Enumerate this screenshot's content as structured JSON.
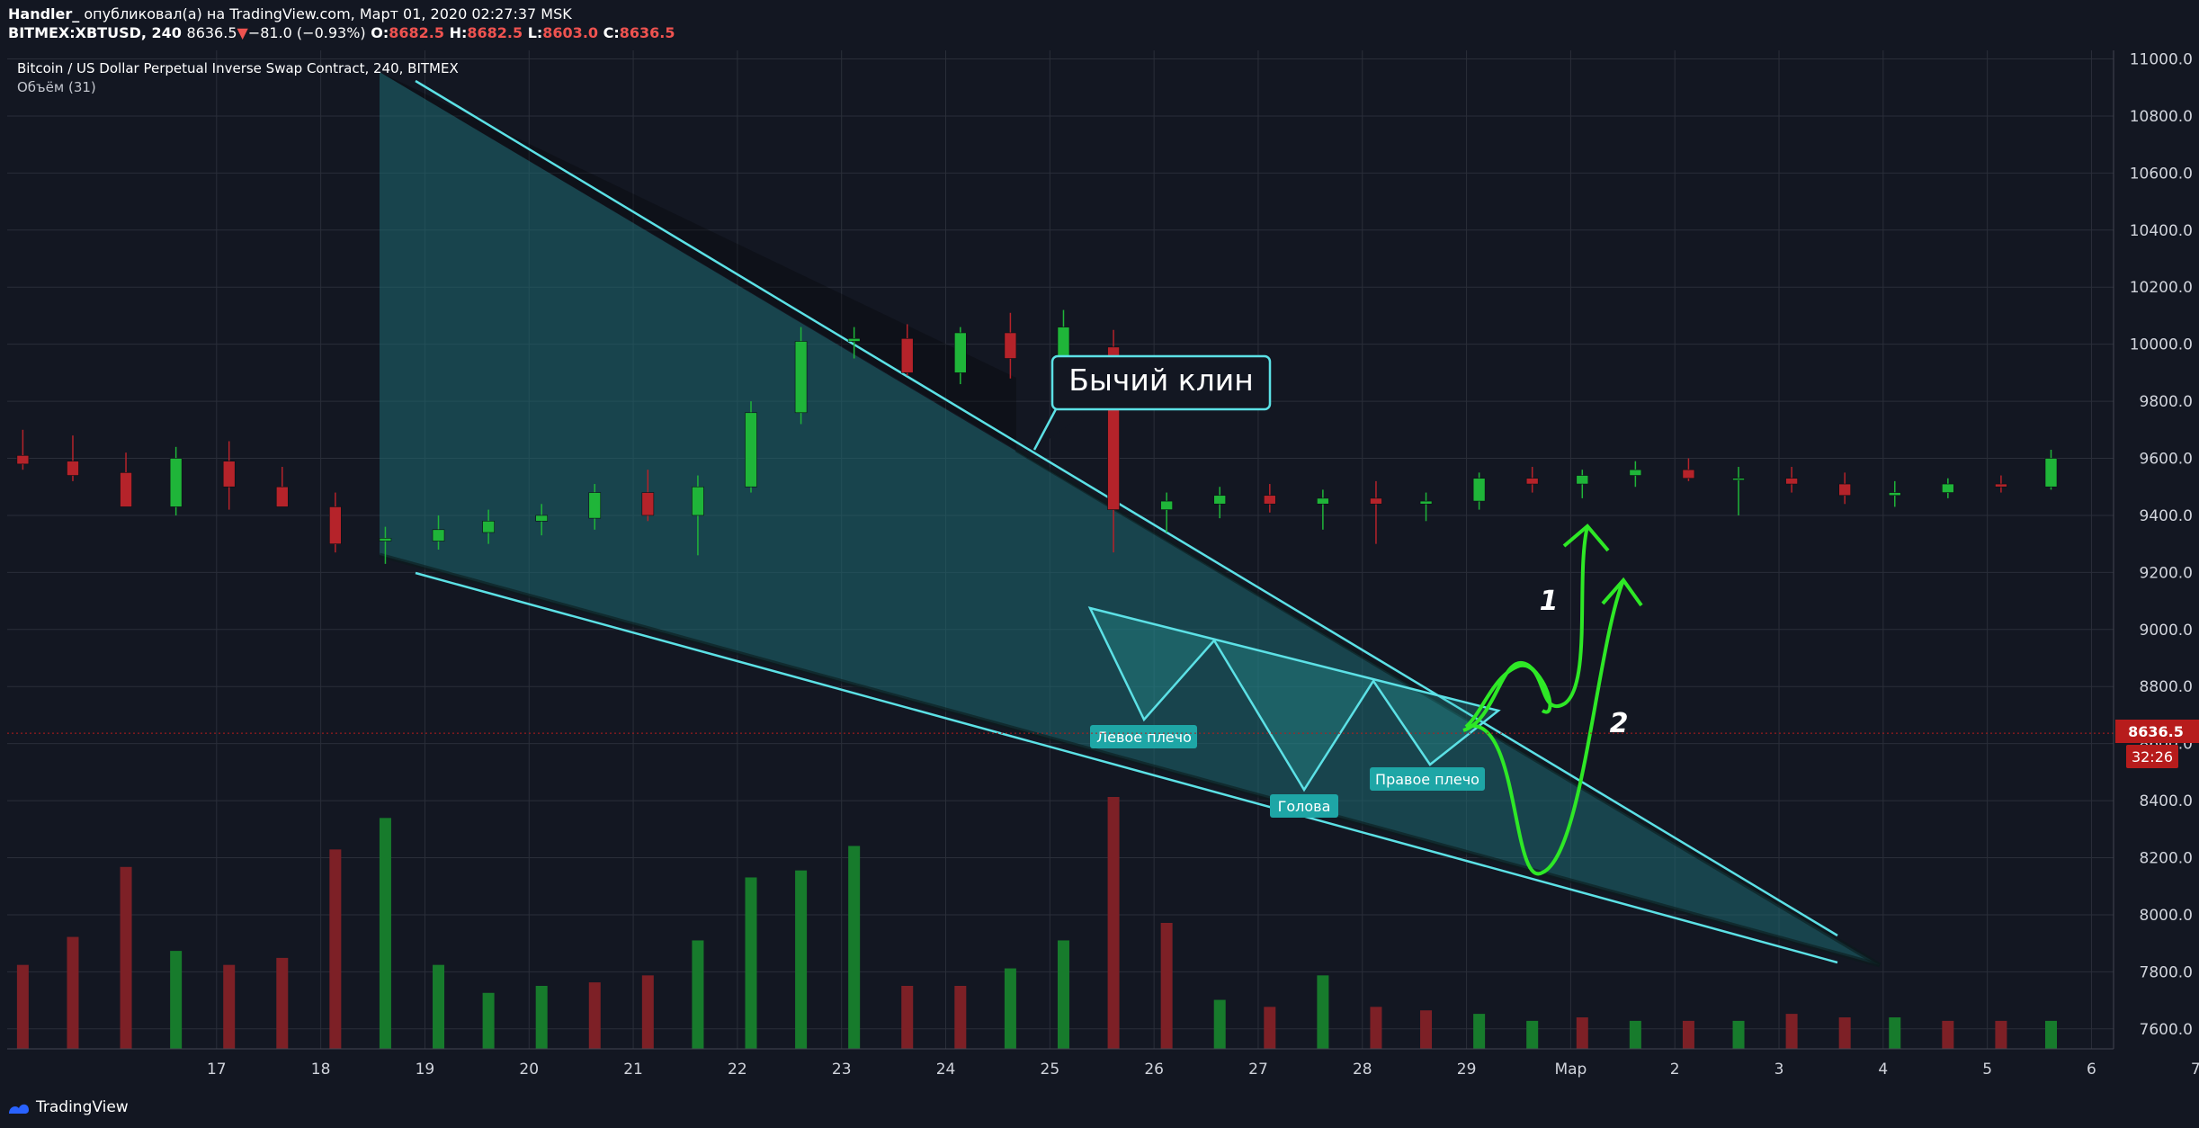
{
  "header": {
    "author": "Handler_",
    "published_text": "опубликовал(а) на TradingView.com, Март 01, 2020 02:27:37 MSK",
    "symbol": "BITMEX:XBTUSD, 240",
    "last": "8636.5",
    "change": "−81.0 (−0.93%)",
    "o_label": "O:",
    "o_value": "8682.5",
    "h_label": "H:",
    "h_value": "8682.5",
    "l_label": "L:",
    "l_value": "8603.0",
    "c_label": "C:",
    "c_value": "8636.5"
  },
  "chart_data": {
    "type": "candlestick",
    "title": "Bitcoin / US Dollar Perpetual Inverse Swap Contract, 240, BITMEX",
    "volume_label": "Объём (31)",
    "x_tick_labels": [
      "17",
      "18",
      "19",
      "20",
      "21",
      "22",
      "23",
      "24",
      "25",
      "26",
      "27",
      "28",
      "29",
      "Мар",
      "2",
      "3",
      "4",
      "5",
      "6",
      "7"
    ],
    "y_tick_labels": [
      "11000.0",
      "10800.0",
      "10600.0",
      "10400.0",
      "10200.0",
      "10000.0",
      "9800.0",
      "9600.0",
      "9400.0",
      "9200.0",
      "9000.0",
      "8800.0",
      "8600.0",
      "8400.0",
      "8200.0",
      "8000.0",
      "7800.0",
      "7600.0"
    ],
    "y_ticks": [
      11000,
      10800,
      10600,
      10400,
      10200,
      10000,
      9800,
      9600,
      9400,
      9200,
      9000,
      8800,
      8600,
      8400,
      8200,
      8000,
      7800,
      7600
    ],
    "ylim": [
      7530,
      11030
    ],
    "xlim": [
      16.33,
      23.07
    ],
    "last_price": 8636.5,
    "last_price_label": "8636.5",
    "countdown": "32:26",
    "grid": true,
    "colors": {
      "background": "#131722",
      "up": "#26a69a",
      "up_body": "#1fb539",
      "down_body": "#b5232a",
      "vol_up": "#177b2c",
      "vol_down": "#7d2026",
      "wedge_line": "#5ce1e6",
      "wedge_fill": "#1d6a71",
      "arrow": "#2ee826",
      "last_price_bg": "#b71c1c"
    },
    "candles": [
      {
        "t": 16.38,
        "o": 9610,
        "h": 9700,
        "l": 9560,
        "c": 9580
      },
      {
        "t": 16.54,
        "o": 9590,
        "h": 9680,
        "l": 9520,
        "c": 9540
      },
      {
        "t": 16.71,
        "o": 9550,
        "h": 9620,
        "l": 9460,
        "c": 9430
      },
      {
        "t": 16.87,
        "o": 9430,
        "h": 9640,
        "l": 9400,
        "c": 9600
      },
      {
        "t": 17.04,
        "o": 9590,
        "h": 9660,
        "l": 9420,
        "c": 9500
      },
      {
        "t": 17.21,
        "o": 9500,
        "h": 9570,
        "l": 9440,
        "c": 9430
      },
      {
        "t": 17.38,
        "o": 9430,
        "h": 9480,
        "l": 9270,
        "c": 9300
      },
      {
        "t": 17.54,
        "o": 9310,
        "h": 9360,
        "l": 9230,
        "c": 9320
      },
      {
        "t": 17.71,
        "o": 9310,
        "h": 9400,
        "l": 9280,
        "c": 9350
      },
      {
        "t": 17.87,
        "o": 9340,
        "h": 9420,
        "l": 9300,
        "c": 9380
      },
      {
        "t": 18.04,
        "o": 9380,
        "h": 9440,
        "l": 9330,
        "c": 9400
      },
      {
        "t": 18.21,
        "o": 9390,
        "h": 9510,
        "l": 9350,
        "c": 9480
      },
      {
        "t": 18.38,
        "o": 9480,
        "h": 9560,
        "l": 9380,
        "c": 9400
      },
      {
        "t": 18.54,
        "o": 9400,
        "h": 9540,
        "l": 9260,
        "c": 9500
      },
      {
        "t": 18.71,
        "o": 9500,
        "h": 9800,
        "l": 9480,
        "c": 9760
      },
      {
        "t": 18.87,
        "o": 9760,
        "h": 10060,
        "l": 9720,
        "c": 10010
      },
      {
        "t": 19.04,
        "o": 10010,
        "h": 10060,
        "l": 9950,
        "c": 10020
      },
      {
        "t": 19.21,
        "o": 10020,
        "h": 10070,
        "l": 9890,
        "c": 9900
      },
      {
        "t": 19.38,
        "o": 9900,
        "h": 10060,
        "l": 9860,
        "c": 10040
      },
      {
        "t": 19.54,
        "o": 10040,
        "h": 10110,
        "l": 9880,
        "c": 9950
      },
      {
        "t": 19.71,
        "o": 9950,
        "h": 10120,
        "l": 9850,
        "c": 10060
      },
      {
        "t": 19.87,
        "o": 9990,
        "h": 10050,
        "l": 9270,
        "c": 9420
      },
      {
        "t": 20.04,
        "o": 9420,
        "h": 9480,
        "l": 9340,
        "c": 9450
      },
      {
        "t": 20.21,
        "o": 9440,
        "h": 9500,
        "l": 9390,
        "c": 9470
      },
      {
        "t": 20.37,
        "o": 9470,
        "h": 9510,
        "l": 9410,
        "c": 9440
      },
      {
        "t": 20.54,
        "o": 9440,
        "h": 9490,
        "l": 9350,
        "c": 9460
      },
      {
        "t": 20.71,
        "o": 9460,
        "h": 9520,
        "l": 9300,
        "c": 9440
      },
      {
        "t": 20.87,
        "o": 9440,
        "h": 9480,
        "l": 9380,
        "c": 9450
      },
      {
        "t": 21.04,
        "o": 9450,
        "h": 9550,
        "l": 9420,
        "c": 9530
      },
      {
        "t": 21.21,
        "o": 9530,
        "h": 9570,
        "l": 9480,
        "c": 9510
      },
      {
        "t": 21.37,
        "o": 9510,
        "h": 9560,
        "l": 9460,
        "c": 9540
      },
      {
        "t": 21.54,
        "o": 9540,
        "h": 9590,
        "l": 9500,
        "c": 9560
      },
      {
        "t": 21.71,
        "o": 9560,
        "h": 9600,
        "l": 9520,
        "c": 9530
      },
      {
        "t": 21.87,
        "o": 9530,
        "h": 9570,
        "l": 9400,
        "c": 9530
      },
      {
        "t": 22.04,
        "o": 9530,
        "h": 9570,
        "l": 9480,
        "c": 9510
      },
      {
        "t": 22.21,
        "o": 9510,
        "h": 9550,
        "l": 9440,
        "c": 9470
      },
      {
        "t": 22.37,
        "o": 9470,
        "h": 9520,
        "l": 9430,
        "c": 9480
      },
      {
        "t": 22.54,
        "o": 9480,
        "h": 9530,
        "l": 9460,
        "c": 9510
      },
      {
        "t": 22.71,
        "o": 9510,
        "h": 9540,
        "l": 9480,
        "c": 9500
      },
      {
        "t": 22.87,
        "o": 9500,
        "h": 9630,
        "l": 9490,
        "c": 9600
      }
    ],
    "volume": [
      {
        "t": 16.38,
        "v": 120,
        "up": false
      },
      {
        "t": 16.54,
        "v": 160,
        "up": false
      },
      {
        "t": 16.71,
        "v": 260,
        "up": false
      },
      {
        "t": 16.87,
        "v": 140,
        "up": true
      },
      {
        "t": 17.04,
        "v": 120,
        "up": false
      },
      {
        "t": 17.21,
        "v": 130,
        "up": false
      },
      {
        "t": 17.38,
        "v": 285,
        "up": false
      },
      {
        "t": 17.54,
        "v": 330,
        "up": true
      },
      {
        "t": 17.71,
        "v": 120,
        "up": true
      },
      {
        "t": 17.87,
        "v": 80,
        "up": true
      },
      {
        "t": 18.04,
        "v": 90,
        "up": true
      },
      {
        "t": 18.21,
        "v": 95,
        "up": false
      },
      {
        "t": 18.38,
        "v": 105,
        "up": false
      },
      {
        "t": 18.54,
        "v": 155,
        "up": true
      },
      {
        "t": 18.71,
        "v": 245,
        "up": true
      },
      {
        "t": 18.87,
        "v": 255,
        "up": true
      },
      {
        "t": 19.04,
        "v": 290,
        "up": true
      },
      {
        "t": 19.21,
        "v": 90,
        "up": false
      },
      {
        "t": 19.38,
        "v": 90,
        "up": false
      },
      {
        "t": 19.54,
        "v": 115,
        "up": true
      },
      {
        "t": 19.71,
        "v": 155,
        "up": true
      },
      {
        "t": 19.87,
        "v": 360,
        "up": false
      },
      {
        "t": 20.04,
        "v": 180,
        "up": false
      },
      {
        "t": 20.21,
        "v": 70,
        "up": true
      },
      {
        "t": 20.37,
        "v": 60,
        "up": false
      },
      {
        "t": 20.54,
        "v": 105,
        "up": true
      },
      {
        "t": 20.71,
        "v": 60,
        "up": false
      },
      {
        "t": 20.87,
        "v": 55,
        "up": false
      },
      {
        "t": 21.04,
        "v": 50,
        "up": true
      },
      {
        "t": 21.21,
        "v": 40,
        "up": true
      },
      {
        "t": 21.37,
        "v": 45,
        "up": false
      },
      {
        "t": 21.54,
        "v": 40,
        "up": true
      },
      {
        "t": 21.71,
        "v": 40,
        "up": false
      },
      {
        "t": 21.87,
        "v": 40,
        "up": true
      },
      {
        "t": 22.04,
        "v": 50,
        "up": false
      },
      {
        "t": 22.21,
        "v": 45,
        "up": false
      },
      {
        "t": 22.37,
        "v": 45,
        "up": true
      },
      {
        "t": 22.54,
        "v": 40,
        "up": false
      },
      {
        "t": 22.71,
        "v": 40,
        "up": false
      },
      {
        "t": 22.87,
        "v": 40,
        "up": true
      }
    ],
    "annotations": {
      "callout": "Бычий клин",
      "left_shoulder": "Левое плечо",
      "head": "Голова",
      "right_shoulder": "Правое плечо",
      "path_1": "1",
      "path_2": "2"
    }
  },
  "footer": {
    "logo_text": "TradingView"
  }
}
